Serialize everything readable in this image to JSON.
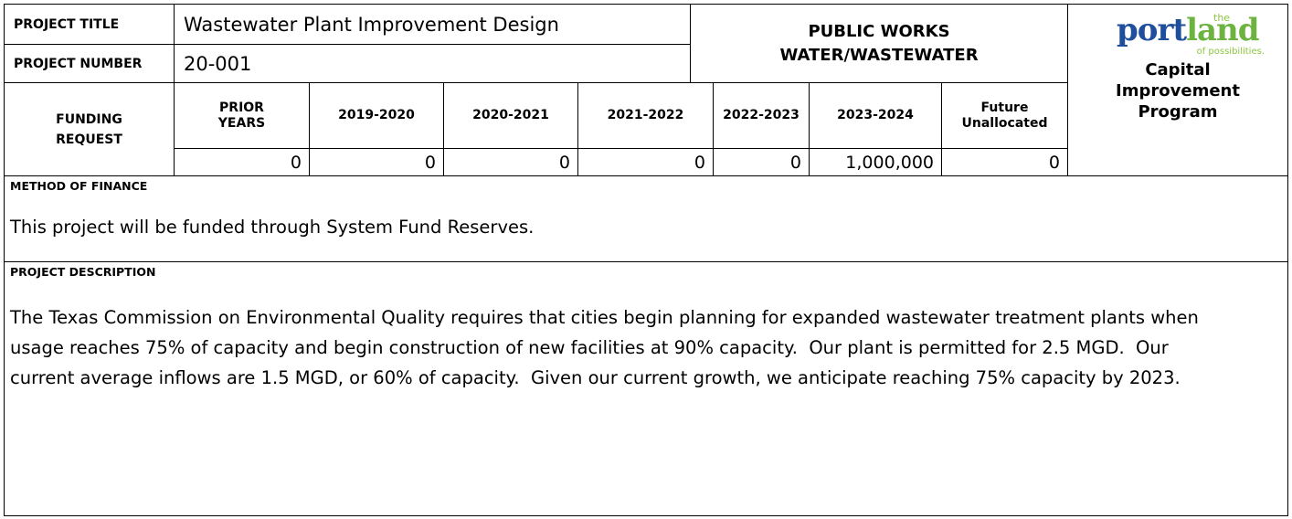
{
  "header": {
    "title_label": "PROJECT TITLE",
    "title": "Wastewater Plant Improvement Design",
    "number_label": "PROJECT NUMBER",
    "number": "20-001",
    "department": [
      "PUBLIC WORKS",
      "WATER/WASTEWATER"
    ]
  },
  "logo": {
    "the": "the",
    "word_a": "port",
    "word_b": "land",
    "tagline": "of possibilities.",
    "program": [
      "Capital",
      "Improvement",
      "Program"
    ]
  },
  "funding": {
    "label": [
      "FUNDING",
      "REQUEST"
    ],
    "columns": [
      [
        "PRIOR",
        "YEARS"
      ],
      [
        "2019-2020"
      ],
      [
        "2020-2021"
      ],
      [
        "2021-2022"
      ],
      [
        "2022-2023"
      ],
      [
        "2023-2024"
      ],
      [
        "Future",
        "Unallocated"
      ]
    ],
    "values": [
      "0",
      "0",
      "0",
      "0",
      "0",
      "1,000,000",
      "0"
    ]
  },
  "finance": {
    "label": "METHOD OF FINANCE",
    "text": "This project will be funded through System Fund Reserves."
  },
  "description": {
    "label": "PROJECT DESCRIPTION",
    "text": "The Texas Commission on Environmental Quality requires that cities begin planning for expanded wastewater treatment plants when usage reaches 75% of capacity and begin construction of new facilities at 90% capacity.  Our plant is permitted for 2.5 MGD.  Our current average inflows are 1.5 MGD, or 60% of capacity.  Given our current growth, we anticipate reaching 75% capacity by 2023."
  }
}
